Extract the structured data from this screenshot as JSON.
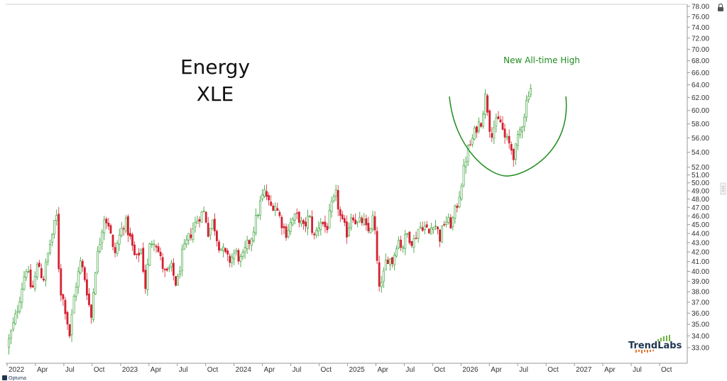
{
  "chart_data": {
    "type": "candlestick",
    "title": "Energy",
    "subtitle": "XLE",
    "annotation": "New All-time High",
    "y_axis": {
      "side": "right",
      "scale": "log",
      "ylim": [
        32.3,
        78.0
      ],
      "tick_labels": [
        "78.00",
        "76.00",
        "74.00",
        "72.00",
        "70.00",
        "68.00",
        "66.00",
        "64.00",
        "62.00",
        "60.00",
        "58.00",
        "56.00",
        "54.00",
        "52.00",
        "51.00",
        "50.00",
        "49.00",
        "48.00",
        "47.00",
        "46.00",
        "45.00",
        "44.00",
        "43.00",
        "42.00",
        "41.00",
        "40.00",
        "39.00",
        "38.00",
        "37.00",
        "36.00",
        "35.00",
        "34.00",
        "33.00"
      ]
    },
    "x_axis": {
      "xlim": [
        "2022-01",
        "2027-12"
      ],
      "tick_labels": [
        "2022",
        "Apr",
        "Jul",
        "Oct",
        "2023",
        "Apr",
        "Jul",
        "Oct",
        "2024",
        "Apr",
        "Jul",
        "Oct",
        "2025",
        "Apr",
        "Jul",
        "Oct",
        "2026",
        "Apr",
        "Jul",
        "Oct",
        "2027",
        "Apr",
        "Jul",
        "Oct"
      ]
    },
    "grid": false,
    "up_color": "#2a9a2a",
    "down_color": "#d42030",
    "annotation_color": "#1e8c1e",
    "series_close": [
      {
        "x": "2022-01-07",
        "close": 33.6
      },
      {
        "x": "2022-02-01",
        "close": 36.0
      },
      {
        "x": "2022-03-01",
        "close": 40.5
      },
      {
        "x": "2022-03-20",
        "close": 38.0
      },
      {
        "x": "2022-04-10",
        "close": 41.0
      },
      {
        "x": "2022-04-25",
        "close": 39.0
      },
      {
        "x": "2022-05-15",
        "close": 42.5
      },
      {
        "x": "2022-06-08",
        "close": 46.0
      },
      {
        "x": "2022-06-18",
        "close": 38.5
      },
      {
        "x": "2022-07-05",
        "close": 36.5
      },
      {
        "x": "2022-07-20",
        "close": 34.0
      },
      {
        "x": "2022-08-05",
        "close": 38.0
      },
      {
        "x": "2022-08-25",
        "close": 41.0
      },
      {
        "x": "2022-09-10",
        "close": 39.0
      },
      {
        "x": "2022-09-28",
        "close": 35.5
      },
      {
        "x": "2022-10-10",
        "close": 40.0
      },
      {
        "x": "2022-10-25",
        "close": 43.0
      },
      {
        "x": "2022-11-08",
        "close": 46.0
      },
      {
        "x": "2022-11-25",
        "close": 45.0
      },
      {
        "x": "2022-12-10",
        "close": 41.5
      },
      {
        "x": "2022-12-30",
        "close": 44.0
      },
      {
        "x": "2023-01-15",
        "close": 45.5
      },
      {
        "x": "2023-02-01",
        "close": 43.5
      },
      {
        "x": "2023-02-20",
        "close": 41.0
      },
      {
        "x": "2023-03-05",
        "close": 42.5
      },
      {
        "x": "2023-03-20",
        "close": 38.5
      },
      {
        "x": "2023-04-05",
        "close": 43.0
      },
      {
        "x": "2023-04-20",
        "close": 43.5
      },
      {
        "x": "2023-05-05",
        "close": 41.5
      },
      {
        "x": "2023-05-25",
        "close": 39.5
      },
      {
        "x": "2023-06-10",
        "close": 40.5
      },
      {
        "x": "2023-06-30",
        "close": 38.5
      },
      {
        "x": "2023-07-15",
        "close": 41.5
      },
      {
        "x": "2023-08-01",
        "close": 43.0
      },
      {
        "x": "2023-08-20",
        "close": 44.5
      },
      {
        "x": "2023-09-10",
        "close": 46.0
      },
      {
        "x": "2023-09-28",
        "close": 46.5
      },
      {
        "x": "2023-10-10",
        "close": 44.0
      },
      {
        "x": "2023-10-25",
        "close": 45.5
      },
      {
        "x": "2023-11-10",
        "close": 43.0
      },
      {
        "x": "2023-11-28",
        "close": 42.0
      },
      {
        "x": "2023-12-15",
        "close": 41.0
      },
      {
        "x": "2024-01-05",
        "close": 42.0
      },
      {
        "x": "2024-01-25",
        "close": 41.0
      },
      {
        "x": "2024-02-10",
        "close": 42.5
      },
      {
        "x": "2024-02-25",
        "close": 43.5
      },
      {
        "x": "2024-03-10",
        "close": 45.5
      },
      {
        "x": "2024-03-28",
        "close": 48.0
      },
      {
        "x": "2024-04-10",
        "close": 49.0
      },
      {
        "x": "2024-04-25",
        "close": 47.0
      },
      {
        "x": "2024-05-10",
        "close": 47.5
      },
      {
        "x": "2024-05-30",
        "close": 45.5
      },
      {
        "x": "2024-06-15",
        "close": 44.0
      },
      {
        "x": "2024-07-05",
        "close": 45.5
      },
      {
        "x": "2024-07-25",
        "close": 46.0
      },
      {
        "x": "2024-08-10",
        "close": 44.5
      },
      {
        "x": "2024-08-30",
        "close": 46.0
      },
      {
        "x": "2024-09-15",
        "close": 43.5
      },
      {
        "x": "2024-10-05",
        "close": 45.5
      },
      {
        "x": "2024-10-25",
        "close": 44.5
      },
      {
        "x": "2024-11-10",
        "close": 47.0
      },
      {
        "x": "2024-11-25",
        "close": 48.5
      },
      {
        "x": "2024-12-10",
        "close": 45.5
      },
      {
        "x": "2024-12-30",
        "close": 44.0
      },
      {
        "x": "2025-01-15",
        "close": 46.5
      },
      {
        "x": "2025-02-01",
        "close": 45.0
      },
      {
        "x": "2025-02-20",
        "close": 45.5
      },
      {
        "x": "2025-03-05",
        "close": 44.0
      },
      {
        "x": "2025-03-25",
        "close": 46.0
      },
      {
        "x": "2025-04-08",
        "close": 39.0
      },
      {
        "x": "2025-04-20",
        "close": 38.5
      },
      {
        "x": "2025-05-05",
        "close": 41.5
      },
      {
        "x": "2025-05-25",
        "close": 41.0
      },
      {
        "x": "2025-06-10",
        "close": 43.5
      },
      {
        "x": "2025-06-25",
        "close": 42.5
      },
      {
        "x": "2025-07-10",
        "close": 44.0
      },
      {
        "x": "2025-07-30",
        "close": 43.0
      },
      {
        "x": "2025-08-15",
        "close": 44.5
      },
      {
        "x": "2025-09-01",
        "close": 45.0
      },
      {
        "x": "2025-09-20",
        "close": 44.0
      },
      {
        "x": "2025-10-05",
        "close": 45.5
      },
      {
        "x": "2025-10-25",
        "close": 43.5
      },
      {
        "x": "2025-11-10",
        "close": 45.5
      },
      {
        "x": "2025-12-01",
        "close": 45.0
      },
      {
        "x": "2025-12-20",
        "close": 47.5
      },
      {
        "x": "2026-01-05",
        "close": 50.5
      },
      {
        "x": "2026-01-20",
        "close": 54.0
      },
      {
        "x": "2026-02-05",
        "close": 55.5
      },
      {
        "x": "2026-02-20",
        "close": 57.5
      },
      {
        "x": "2026-03-05",
        "close": 58.5
      },
      {
        "x": "2026-03-20",
        "close": 62.5
      },
      {
        "x": "2026-04-05",
        "close": 56.5
      },
      {
        "x": "2026-04-20",
        "close": 58.0
      },
      {
        "x": "2026-05-05",
        "close": 58.5
      },
      {
        "x": "2026-05-20",
        "close": 56.0
      },
      {
        "x": "2026-06-05",
        "close": 55.0
      },
      {
        "x": "2026-06-20",
        "close": 53.5
      },
      {
        "x": "2026-07-05",
        "close": 56.5
      },
      {
        "x": "2026-07-20",
        "close": 59.0
      },
      {
        "x": "2026-08-05",
        "close": 63.0
      },
      {
        "x": "2026-08-18",
        "close": 64.0
      }
    ]
  },
  "branding": {
    "logo_text": "TrendLabs",
    "footer_text": "Optuma"
  }
}
